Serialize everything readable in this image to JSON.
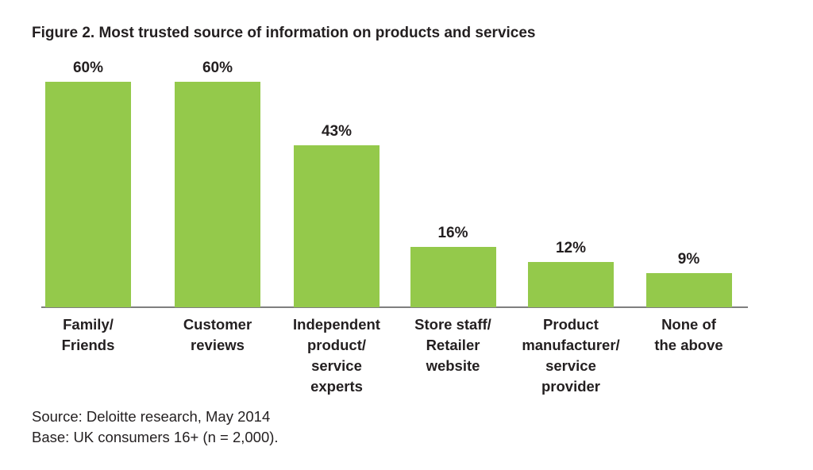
{
  "figure": {
    "title": "Figure 2. Most trusted source of information on products and services",
    "source": "Source: Deloitte research, May 2014",
    "base": "Base: UK consumers 16+ (n = 2,000)."
  },
  "chart_data": {
    "type": "bar",
    "title": "Figure 2. Most trusted source of information on products and services",
    "categories": [
      "Family/\nFriends",
      "Customer\nreviews",
      "Independent\nproduct/\nservice\nexperts",
      "Store staff/\nRetailer\nwebsite",
      "Product\nmanufacturer/\nservice\nprovider",
      "None of\nthe above"
    ],
    "values": [
      60,
      60,
      43,
      16,
      12,
      9
    ],
    "value_labels": [
      "60%",
      "60%",
      "43%",
      "16%",
      "12%",
      "9%"
    ],
    "unit": "%",
    "xlabel": "",
    "ylabel": "",
    "ylim": [
      0,
      60
    ],
    "grid": false,
    "legend": false,
    "bar_color": "#94C94B",
    "axis_color": "#7F7F7F",
    "text_color": "#231F20",
    "source": "Source: Deloitte research, May 2014",
    "base_note": "Base: UK consumers 16+ (n = 2,000)."
  }
}
